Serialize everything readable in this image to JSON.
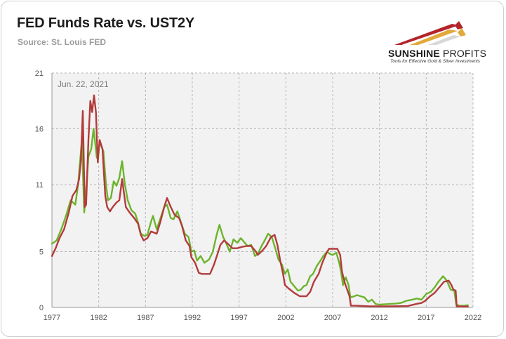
{
  "header": {
    "title": "FED Funds Rate vs. UST2Y",
    "source": "Source: St. Louis FED"
  },
  "brand": {
    "name_bold": "SUNSHINE",
    "name_light": " PROFITS",
    "tagline": "Tools for Effective Gold & Silver Investments",
    "colors": {
      "red": "#b3252b",
      "gold": "#e2a93b"
    }
  },
  "chart_data": {
    "type": "line",
    "annotation": "Jun. 22, 2021",
    "xlim": [
      1977,
      2022
    ],
    "ylim": [
      0,
      21
    ],
    "x_ticks": [
      1977,
      1982,
      1987,
      1992,
      1997,
      2002,
      2007,
      2012,
      2017,
      2022
    ],
    "y_ticks": [
      0,
      5,
      11,
      16,
      21
    ],
    "grid": true,
    "plot_background": "#f2f2f2",
    "series": [
      {
        "key": "ust2y",
        "color": "#6cb42c",
        "points": [
          [
            1977.0,
            5.7
          ],
          [
            1977.5,
            6.0
          ],
          [
            1978.0,
            7.0
          ],
          [
            1978.5,
            8.2
          ],
          [
            1979.0,
            9.6
          ],
          [
            1979.5,
            9.2
          ],
          [
            1979.8,
            11.0
          ],
          [
            1980.0,
            13.0
          ],
          [
            1980.2,
            15.0
          ],
          [
            1980.45,
            8.5
          ],
          [
            1980.7,
            11.0
          ],
          [
            1980.9,
            13.5
          ],
          [
            1981.2,
            14.2
          ],
          [
            1981.45,
            16.0
          ],
          [
            1981.8,
            13.4
          ],
          [
            1982.1,
            14.8
          ],
          [
            1982.5,
            14.0
          ],
          [
            1982.8,
            10.8
          ],
          [
            1983.0,
            9.6
          ],
          [
            1983.3,
            9.8
          ],
          [
            1983.6,
            11.3
          ],
          [
            1983.9,
            10.9
          ],
          [
            1984.2,
            11.6
          ],
          [
            1984.5,
            13.1
          ],
          [
            1984.8,
            11.0
          ],
          [
            1985.1,
            9.6
          ],
          [
            1985.5,
            8.7
          ],
          [
            1985.9,
            8.4
          ],
          [
            1986.2,
            7.6
          ],
          [
            1986.5,
            6.6
          ],
          [
            1986.9,
            6.4
          ],
          [
            1987.2,
            6.5
          ],
          [
            1987.6,
            7.7
          ],
          [
            1987.8,
            8.2
          ],
          [
            1988.2,
            7.0
          ],
          [
            1988.6,
            8.0
          ],
          [
            1989.0,
            9.0
          ],
          [
            1989.3,
            9.2
          ],
          [
            1989.7,
            8.0
          ],
          [
            1990.0,
            7.9
          ],
          [
            1990.4,
            8.6
          ],
          [
            1990.8,
            7.6
          ],
          [
            1991.2,
            6.6
          ],
          [
            1991.6,
            6.3
          ],
          [
            1991.9,
            5.0
          ],
          [
            1992.2,
            5.1
          ],
          [
            1992.5,
            4.2
          ],
          [
            1992.9,
            4.6
          ],
          [
            1993.3,
            4.0
          ],
          [
            1993.8,
            4.3
          ],
          [
            1994.2,
            5.0
          ],
          [
            1994.6,
            6.5
          ],
          [
            1994.9,
            7.4
          ],
          [
            1995.3,
            6.3
          ],
          [
            1995.6,
            5.8
          ],
          [
            1996.0,
            5.0
          ],
          [
            1996.4,
            6.1
          ],
          [
            1996.8,
            5.8
          ],
          [
            1997.2,
            6.2
          ],
          [
            1997.6,
            5.8
          ],
          [
            1997.9,
            5.5
          ],
          [
            1998.3,
            5.6
          ],
          [
            1998.7,
            4.6
          ],
          [
            1999.0,
            4.8
          ],
          [
            1999.4,
            5.5
          ],
          [
            1999.8,
            6.1
          ],
          [
            2000.1,
            6.6
          ],
          [
            2000.5,
            6.3
          ],
          [
            2000.9,
            5.2
          ],
          [
            2001.2,
            4.3
          ],
          [
            2001.6,
            3.8
          ],
          [
            2001.9,
            3.0
          ],
          [
            2002.2,
            3.4
          ],
          [
            2002.5,
            2.3
          ],
          [
            2002.9,
            1.9
          ],
          [
            2003.3,
            1.5
          ],
          [
            2003.6,
            1.6
          ],
          [
            2003.9,
            1.9
          ],
          [
            2004.2,
            2.0
          ],
          [
            2004.6,
            2.8
          ],
          [
            2004.9,
            3.0
          ],
          [
            2005.3,
            3.7
          ],
          [
            2005.7,
            4.2
          ],
          [
            2006.0,
            4.6
          ],
          [
            2006.4,
            5.0
          ],
          [
            2006.7,
            4.8
          ],
          [
            2007.0,
            4.7
          ],
          [
            2007.4,
            4.9
          ],
          [
            2007.7,
            4.0
          ],
          [
            2007.9,
            3.2
          ],
          [
            2008.1,
            2.0
          ],
          [
            2008.4,
            2.7
          ],
          [
            2008.7,
            2.0
          ],
          [
            2008.9,
            0.9
          ],
          [
            2009.3,
            1.0
          ],
          [
            2009.6,
            1.1
          ],
          [
            2010.0,
            1.0
          ],
          [
            2010.4,
            0.9
          ],
          [
            2010.8,
            0.5
          ],
          [
            2011.2,
            0.7
          ],
          [
            2011.6,
            0.3
          ],
          [
            2012.0,
            0.25
          ],
          [
            2013.0,
            0.3
          ],
          [
            2013.8,
            0.35
          ],
          [
            2014.3,
            0.4
          ],
          [
            2014.9,
            0.6
          ],
          [
            2015.5,
            0.7
          ],
          [
            2016.0,
            0.8
          ],
          [
            2016.5,
            0.7
          ],
          [
            2017.0,
            1.2
          ],
          [
            2017.5,
            1.4
          ],
          [
            2017.9,
            1.8
          ],
          [
            2018.3,
            2.3
          ],
          [
            2018.8,
            2.8
          ],
          [
            2019.2,
            2.4
          ],
          [
            2019.6,
            1.6
          ],
          [
            2020.0,
            1.5
          ],
          [
            2020.2,
            0.3
          ],
          [
            2020.5,
            0.15
          ],
          [
            2021.0,
            0.15
          ],
          [
            2021.45,
            0.2
          ]
        ]
      },
      {
        "key": "fed_funds",
        "color": "#b33b3b",
        "points": [
          [
            1977.0,
            4.6
          ],
          [
            1977.4,
            5.3
          ],
          [
            1977.8,
            6.2
          ],
          [
            1978.3,
            7.0
          ],
          [
            1978.8,
            8.5
          ],
          [
            1979.2,
            10.0
          ],
          [
            1979.6,
            10.5
          ],
          [
            1979.9,
            11.5
          ],
          [
            1980.1,
            13.2
          ],
          [
            1980.3,
            17.6
          ],
          [
            1980.5,
            9.0
          ],
          [
            1980.65,
            9.2
          ],
          [
            1980.9,
            15.0
          ],
          [
            1981.1,
            18.5
          ],
          [
            1981.3,
            17.5
          ],
          [
            1981.5,
            19.0
          ],
          [
            1981.7,
            17.5
          ],
          [
            1981.9,
            13.0
          ],
          [
            1982.1,
            15.0
          ],
          [
            1982.4,
            14.2
          ],
          [
            1982.7,
            10.0
          ],
          [
            1982.9,
            9.0
          ],
          [
            1983.2,
            8.6
          ],
          [
            1983.5,
            9.0
          ],
          [
            1983.9,
            9.4
          ],
          [
            1984.2,
            9.6
          ],
          [
            1984.5,
            11.5
          ],
          [
            1984.9,
            9.0
          ],
          [
            1985.3,
            8.5
          ],
          [
            1985.8,
            8.0
          ],
          [
            1986.2,
            7.5
          ],
          [
            1986.5,
            6.5
          ],
          [
            1986.8,
            6.0
          ],
          [
            1987.2,
            6.2
          ],
          [
            1987.6,
            6.8
          ],
          [
            1987.9,
            6.7
          ],
          [
            1988.2,
            6.6
          ],
          [
            1988.6,
            7.7
          ],
          [
            1989.0,
            9.0
          ],
          [
            1989.3,
            9.8
          ],
          [
            1989.7,
            9.0
          ],
          [
            1990.1,
            8.3
          ],
          [
            1990.6,
            8.0
          ],
          [
            1990.9,
            7.3
          ],
          [
            1991.3,
            6.0
          ],
          [
            1991.7,
            5.5
          ],
          [
            1991.9,
            4.5
          ],
          [
            1992.3,
            4.0
          ],
          [
            1992.7,
            3.1
          ],
          [
            1993.0,
            3.0
          ],
          [
            1993.5,
            3.0
          ],
          [
            1993.9,
            3.0
          ],
          [
            1994.3,
            3.8
          ],
          [
            1994.7,
            4.8
          ],
          [
            1995.0,
            5.6
          ],
          [
            1995.4,
            6.0
          ],
          [
            1995.8,
            5.7
          ],
          [
            1996.3,
            5.3
          ],
          [
            1996.8,
            5.3
          ],
          [
            1997.2,
            5.4
          ],
          [
            1997.8,
            5.5
          ],
          [
            1998.3,
            5.5
          ],
          [
            1998.8,
            5.0
          ],
          [
            1999.0,
            4.7
          ],
          [
            1999.5,
            5.1
          ],
          [
            1999.9,
            5.5
          ],
          [
            2000.4,
            6.3
          ],
          [
            2000.8,
            6.5
          ],
          [
            2001.1,
            5.6
          ],
          [
            2001.4,
            4.2
          ],
          [
            2001.7,
            3.0
          ],
          [
            2001.9,
            2.0
          ],
          [
            2002.3,
            1.7
          ],
          [
            2002.9,
            1.3
          ],
          [
            2003.5,
            1.0
          ],
          [
            2004.2,
            1.0
          ],
          [
            2004.6,
            1.4
          ],
          [
            2005.0,
            2.3
          ],
          [
            2005.5,
            3.0
          ],
          [
            2005.9,
            4.0
          ],
          [
            2006.3,
            4.8
          ],
          [
            2006.6,
            5.25
          ],
          [
            2007.0,
            5.25
          ],
          [
            2007.5,
            5.25
          ],
          [
            2007.8,
            4.7
          ],
          [
            2008.0,
            3.2
          ],
          [
            2008.3,
            2.2
          ],
          [
            2008.8,
            1.0
          ],
          [
            2008.95,
            0.15
          ],
          [
            2009.5,
            0.15
          ],
          [
            2011.0,
            0.1
          ],
          [
            2013.0,
            0.1
          ],
          [
            2015.0,
            0.12
          ],
          [
            2015.9,
            0.3
          ],
          [
            2016.5,
            0.4
          ],
          [
            2016.9,
            0.6
          ],
          [
            2017.4,
            1.0
          ],
          [
            2017.9,
            1.3
          ],
          [
            2018.4,
            1.8
          ],
          [
            2018.9,
            2.3
          ],
          [
            2019.4,
            2.4
          ],
          [
            2019.7,
            2.0
          ],
          [
            2019.9,
            1.6
          ],
          [
            2020.15,
            1.5
          ],
          [
            2020.25,
            0.1
          ],
          [
            2021.0,
            0.08
          ],
          [
            2021.45,
            0.08
          ]
        ]
      }
    ]
  }
}
